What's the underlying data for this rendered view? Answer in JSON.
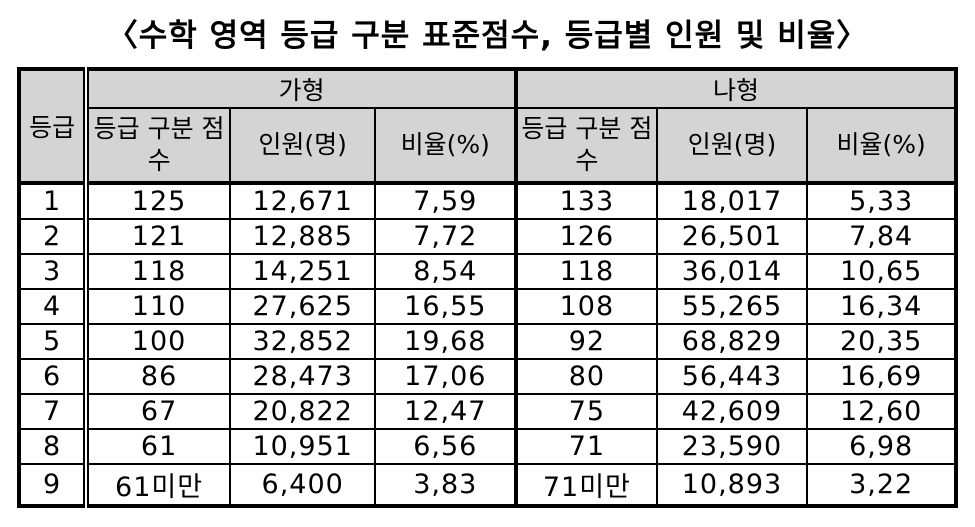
{
  "title": "〈수학 영역 등급 구분 표준점수, 등급별 인원 및 비율〉",
  "table": {
    "grade_header": "등급",
    "groups": [
      {
        "name": "가형",
        "columns": [
          "등급 구분 점수",
          "인원(명)",
          "비율(%)"
        ]
      },
      {
        "name": "나형",
        "columns": [
          "등급 구분 점수",
          "인원(명)",
          "비율(%)"
        ]
      }
    ],
    "rows": [
      [
        "1",
        "125",
        "12,671",
        "7,59",
        "133",
        "18,017",
        "5,33"
      ],
      [
        "2",
        "121",
        "12,885",
        "7,72",
        "126",
        "26,501",
        "7,84"
      ],
      [
        "3",
        "118",
        "14,251",
        "8,54",
        "118",
        "36,014",
        "10,65"
      ],
      [
        "4",
        "110",
        "27,625",
        "16,55",
        "108",
        "55,265",
        "16,34"
      ],
      [
        "5",
        "100",
        "32,852",
        "19,68",
        "92",
        "68,829",
        "20,35"
      ],
      [
        "6",
        "86",
        "28,473",
        "17,06",
        "80",
        "56,443",
        "16,69"
      ],
      [
        "7",
        "67",
        "20,822",
        "12,47",
        "75",
        "42,609",
        "12,60"
      ],
      [
        "8",
        "61",
        "10,951",
        "6,56",
        "71",
        "23,590",
        "6,98"
      ],
      [
        "9",
        "61미만",
        "6,400",
        "3,83",
        "71미만",
        "10,893",
        "3,22"
      ]
    ]
  },
  "colors": {
    "header_background": "#d4d4d4",
    "border": "#000000",
    "text": "#000000",
    "page_background": "#ffffff"
  }
}
